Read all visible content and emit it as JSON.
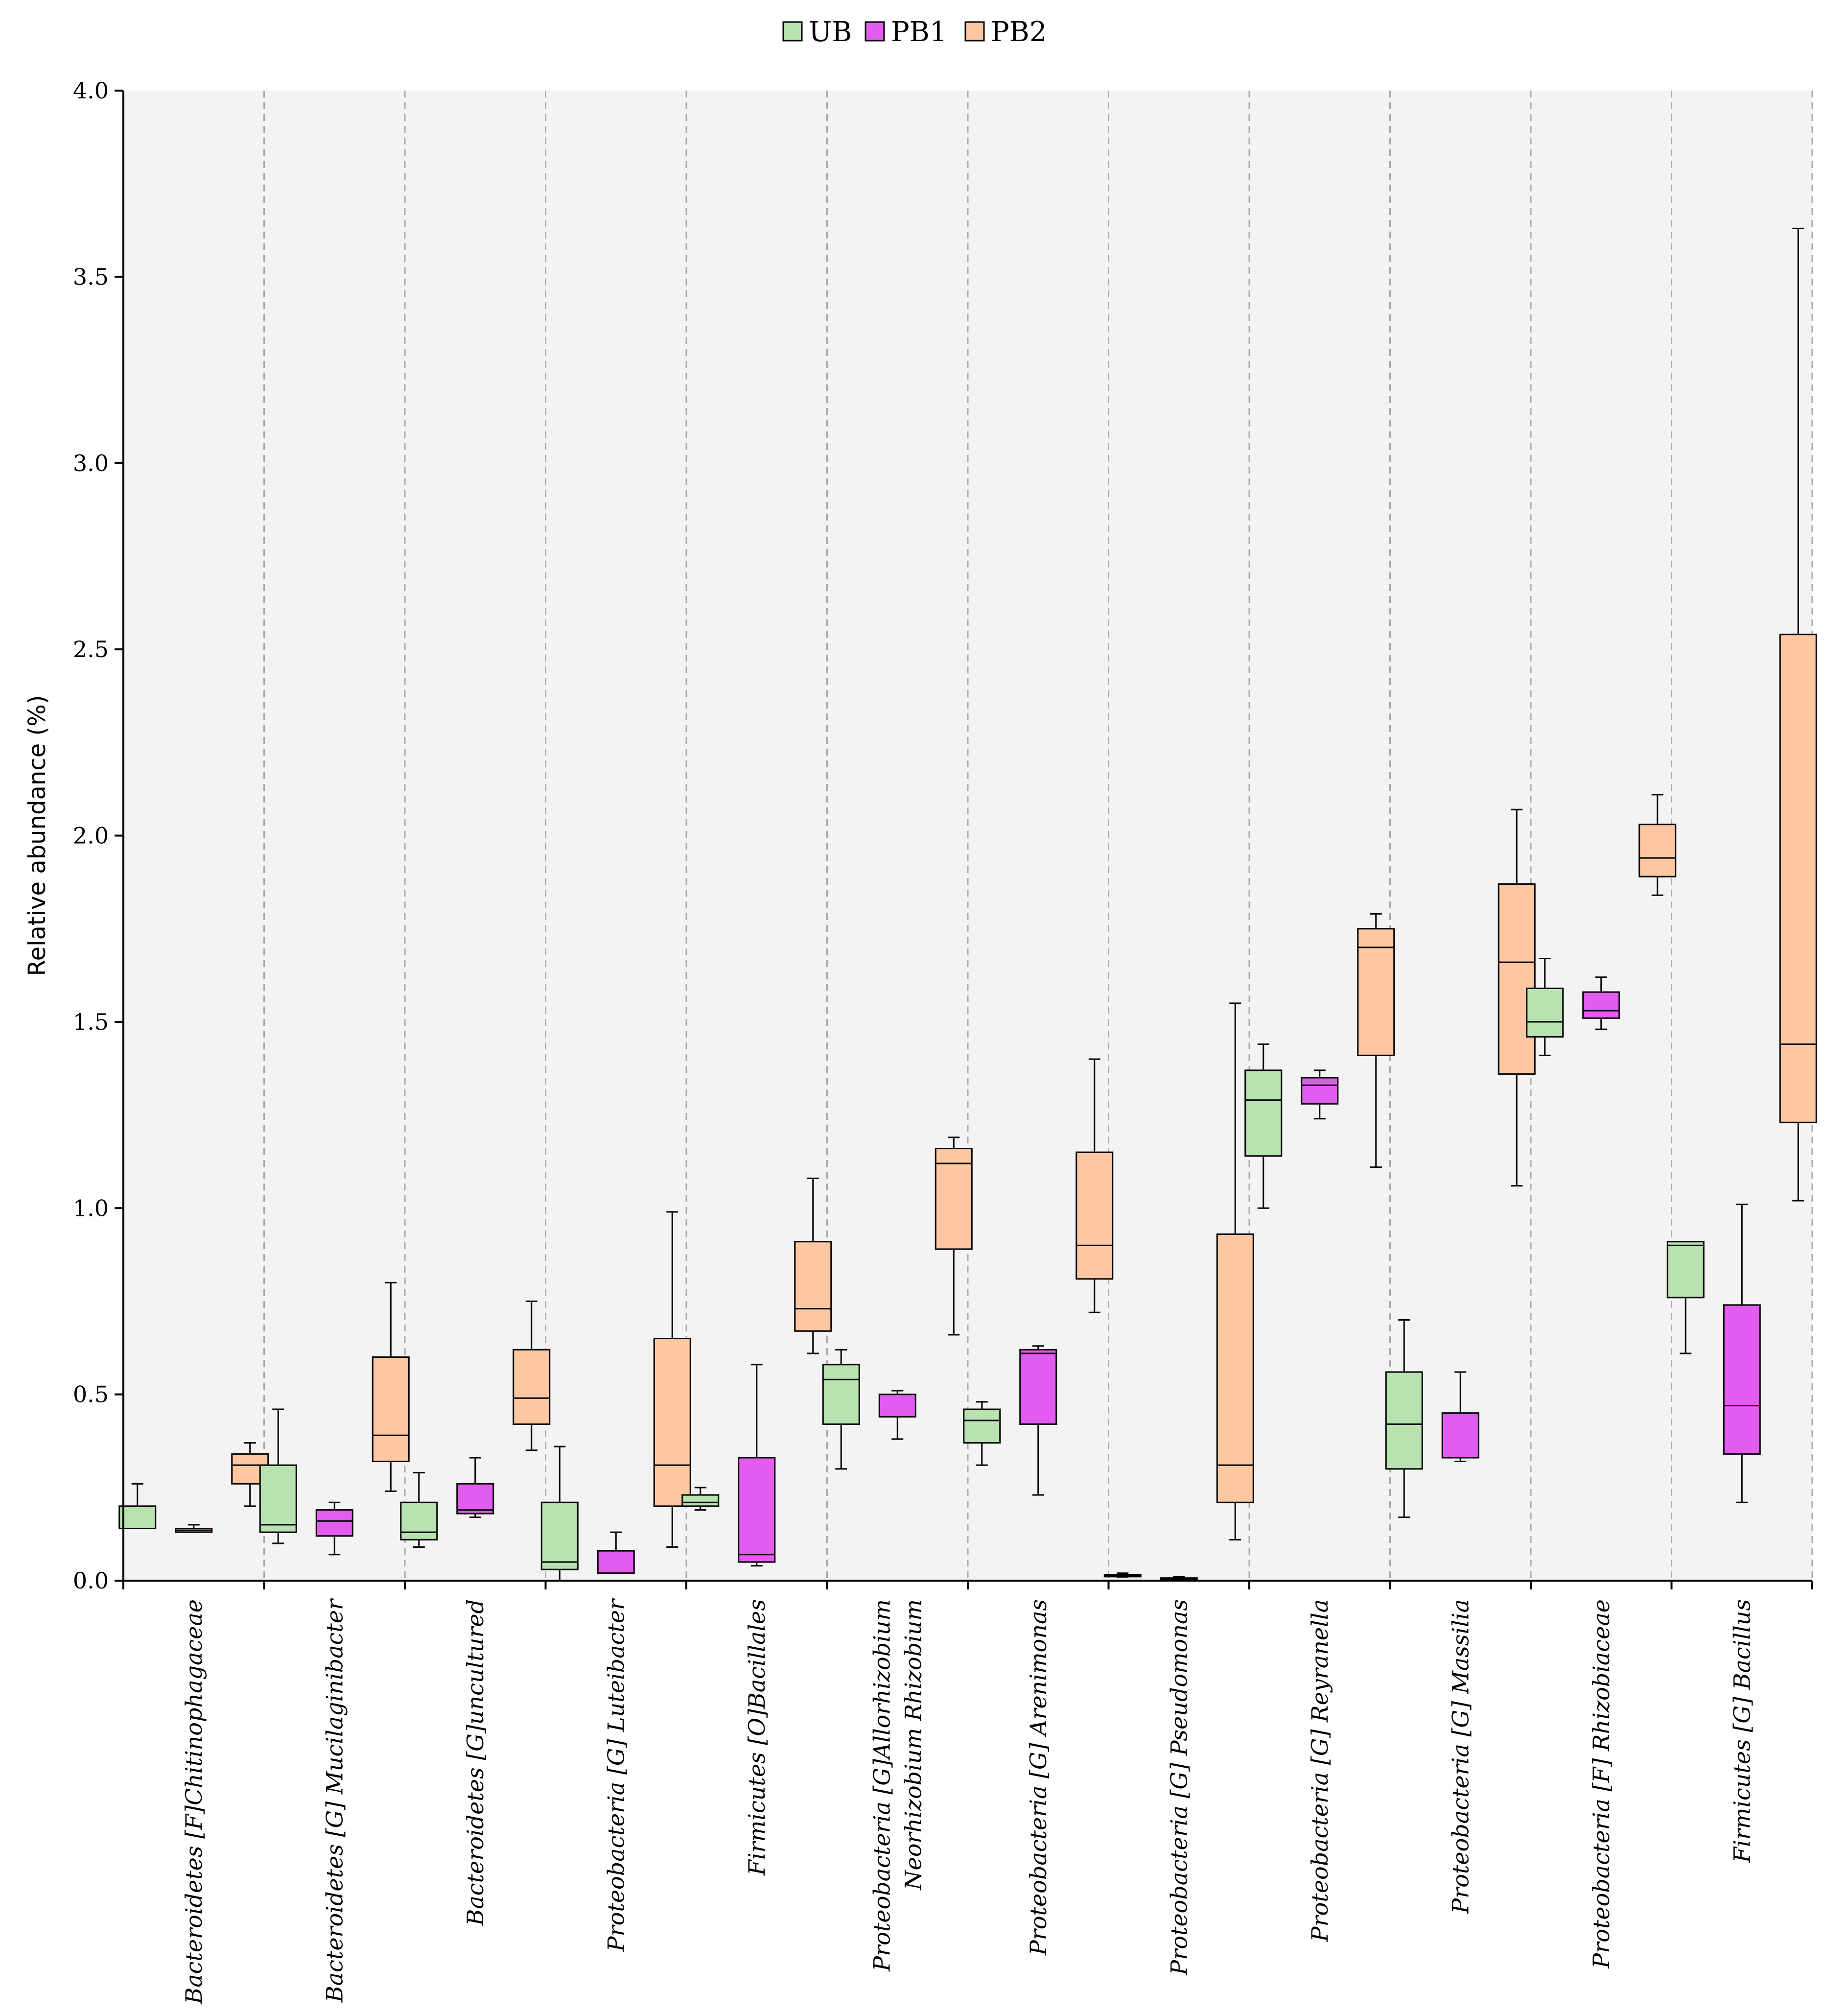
{
  "chart_data": {
    "type": "box",
    "ylabel": "Relative abundance (%)",
    "ylim": [
      0,
      4.0
    ],
    "yticks": [
      "0.0",
      "0.5",
      "1.0",
      "1.5",
      "2.0",
      "2.5",
      "3.0",
      "3.5",
      "4.0"
    ],
    "grid": "vertical dashed separators between categories",
    "legend_position": "top-center",
    "series": [
      {
        "name": "UB",
        "color": "#b8e2b0"
      },
      {
        "name": "PB1",
        "color": "#e35cf0"
      },
      {
        "name": "PB2",
        "color": "#fdc7a2"
      }
    ],
    "categories": [
      {
        "label": [
          "Bacteroidetes [F]Chitinophagaceae"
        ],
        "boxes": [
          {
            "min": 0.14,
            "q1": 0.14,
            "median": 0.14,
            "q3": 0.2,
            "max": 0.26
          },
          {
            "min": 0.13,
            "q1": 0.13,
            "median": 0.135,
            "q3": 0.14,
            "max": 0.15
          },
          {
            "min": 0.2,
            "q1": 0.26,
            "median": 0.31,
            "q3": 0.34,
            "max": 0.37
          }
        ]
      },
      {
        "label": [
          "Bacteroidetes  [G] Mucilaginibacter"
        ],
        "boxes": [
          {
            "min": 0.1,
            "q1": 0.13,
            "median": 0.15,
            "q3": 0.31,
            "max": 0.46
          },
          {
            "min": 0.07,
            "q1": 0.12,
            "median": 0.16,
            "q3": 0.19,
            "max": 0.21
          },
          {
            "min": 0.24,
            "q1": 0.32,
            "median": 0.39,
            "q3": 0.6,
            "max": 0.8
          }
        ]
      },
      {
        "label": [
          "Bacteroidetes  [G]uncultured"
        ],
        "boxes": [
          {
            "min": 0.09,
            "q1": 0.11,
            "median": 0.13,
            "q3": 0.21,
            "max": 0.29
          },
          {
            "min": 0.17,
            "q1": 0.18,
            "median": 0.19,
            "q3": 0.26,
            "max": 0.33
          },
          {
            "min": 0.35,
            "q1": 0.42,
            "median": 0.49,
            "q3": 0.62,
            "max": 0.75
          }
        ]
      },
      {
        "label": [
          "Proteobacteria [G] Luteibacter"
        ],
        "boxes": [
          {
            "min": 0.0,
            "q1": 0.03,
            "median": 0.05,
            "q3": 0.21,
            "max": 0.36
          },
          {
            "min": 0.02,
            "q1": 0.02,
            "median": 0.02,
            "q3": 0.08,
            "max": 0.13
          },
          {
            "min": 0.09,
            "q1": 0.2,
            "median": 0.31,
            "q3": 0.65,
            "max": 0.99
          }
        ]
      },
      {
        "label": [
          "Firmicutes [O]Bacillales"
        ],
        "boxes": [
          {
            "min": 0.19,
            "q1": 0.2,
            "median": 0.21,
            "q3": 0.23,
            "max": 0.25
          },
          {
            "min": 0.04,
            "q1": 0.05,
            "median": 0.07,
            "q3": 0.33,
            "max": 0.58
          },
          {
            "min": 0.61,
            "q1": 0.67,
            "median": 0.73,
            "q3": 0.91,
            "max": 1.08
          }
        ]
      },
      {
        "label": [
          "Proteobacteria [G]Allorhizobium",
          "Neorhizobium Rhizobium"
        ],
        "boxes": [
          {
            "min": 0.3,
            "q1": 0.42,
            "median": 0.54,
            "q3": 0.58,
            "max": 0.62
          },
          {
            "min": 0.38,
            "q1": 0.44,
            "median": 0.5,
            "q3": 0.5,
            "max": 0.51
          },
          {
            "min": 0.66,
            "q1": 0.89,
            "median": 1.12,
            "q3": 1.16,
            "max": 1.19
          }
        ]
      },
      {
        "label": [
          "Proteobacteria [G] Arenimonas"
        ],
        "boxes": [
          {
            "min": 0.31,
            "q1": 0.37,
            "median": 0.43,
            "q3": 0.46,
            "max": 0.48
          },
          {
            "min": 0.23,
            "q1": 0.42,
            "median": 0.61,
            "q3": 0.62,
            "max": 0.63
          },
          {
            "min": 0.72,
            "q1": 0.81,
            "median": 0.9,
            "q3": 1.15,
            "max": 1.4
          }
        ]
      },
      {
        "label": [
          "Proteobacteria [G] Pseudomonas"
        ],
        "boxes": [
          {
            "min": 0.01,
            "q1": 0.012,
            "median": 0.014,
            "q3": 0.016,
            "max": 0.02
          },
          {
            "min": 0.0,
            "q1": 0.003,
            "median": 0.005,
            "q3": 0.007,
            "max": 0.01
          },
          {
            "min": 0.11,
            "q1": 0.21,
            "median": 0.31,
            "q3": 0.93,
            "max": 1.55
          }
        ]
      },
      {
        "label": [
          "Proteobacteria [G] Reyranella"
        ],
        "boxes": [
          {
            "min": 1.0,
            "q1": 1.14,
            "median": 1.29,
            "q3": 1.37,
            "max": 1.44
          },
          {
            "min": 1.24,
            "q1": 1.28,
            "median": 1.33,
            "q3": 1.35,
            "max": 1.37
          },
          {
            "min": 1.11,
            "q1": 1.41,
            "median": 1.7,
            "q3": 1.75,
            "max": 1.79
          }
        ]
      },
      {
        "label": [
          "Proteobacteria [G] Massilia"
        ],
        "boxes": [
          {
            "min": 0.17,
            "q1": 0.3,
            "median": 0.42,
            "q3": 0.56,
            "max": 0.7
          },
          {
            "min": 0.32,
            "q1": 0.33,
            "median": 0.33,
            "q3": 0.45,
            "max": 0.56
          },
          {
            "min": 1.06,
            "q1": 1.36,
            "median": 1.66,
            "q3": 1.87,
            "max": 2.07
          }
        ]
      },
      {
        "label": [
          "Proteobacteria [F] Rhizobiaceae"
        ],
        "boxes": [
          {
            "min": 1.41,
            "q1": 1.46,
            "median": 1.5,
            "q3": 1.59,
            "max": 1.67
          },
          {
            "min": 1.48,
            "q1": 1.51,
            "median": 1.53,
            "q3": 1.58,
            "max": 1.62
          },
          {
            "min": 1.84,
            "q1": 1.89,
            "median": 1.94,
            "q3": 2.03,
            "max": 2.11
          }
        ]
      },
      {
        "label": [
          "Firmicutes  [G] Bacillus"
        ],
        "boxes": [
          {
            "min": 0.61,
            "q1": 0.76,
            "median": 0.9,
            "q3": 0.91,
            "max": 0.91
          },
          {
            "min": 0.21,
            "q1": 0.34,
            "median": 0.47,
            "q3": 0.74,
            "max": 1.01
          },
          {
            "min": 1.02,
            "q1": 1.23,
            "median": 1.44,
            "q3": 2.54,
            "max": 3.63
          }
        ]
      }
    ]
  }
}
